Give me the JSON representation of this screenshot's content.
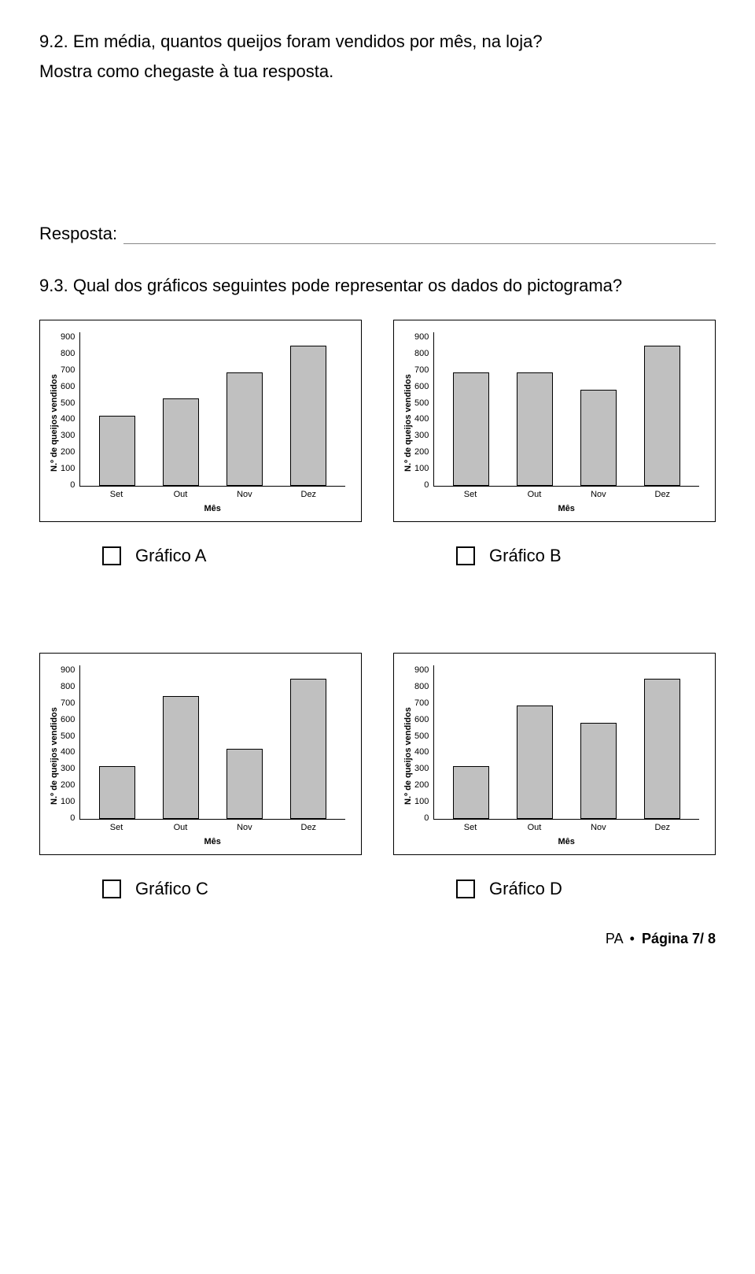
{
  "q92": {
    "number": "9.2.",
    "text": "Em média, quantos queijos foram vendidos por mês, na loja?",
    "sub": "Mostra como chegaste à tua resposta.",
    "resposta_label": "Resposta:"
  },
  "q93": {
    "number": "9.3.",
    "text": "Qual dos gráficos seguintes pode representar os dados do pictograma?"
  },
  "chart_common": {
    "y_label": "N.º de queijos vendidos",
    "x_label": "Mês",
    "y_max": 900,
    "y_tick_step": 100,
    "y_ticks": [
      "900",
      "800",
      "700",
      "600",
      "500",
      "400",
      "300",
      "200",
      "100",
      "0"
    ],
    "categories": [
      "Set",
      "Out",
      "Nov",
      "Dez"
    ],
    "bar_fill": "#c0c0c0",
    "bar_border": "#000000",
    "axis_color": "#000000"
  },
  "charts": {
    "A": {
      "values": [
        400,
        500,
        650,
        800
      ],
      "label": "Gráfico A"
    },
    "B": {
      "values": [
        650,
        650,
        550,
        800
      ],
      "label": "Gráfico B"
    },
    "C": {
      "values": [
        300,
        700,
        400,
        800
      ],
      "label": "Gráfico C"
    },
    "D": {
      "values": [
        300,
        650,
        550,
        800
      ],
      "label": "Gráfico D"
    }
  },
  "footer": {
    "prefix": "PA",
    "page_label": "Página 7/ 8"
  }
}
